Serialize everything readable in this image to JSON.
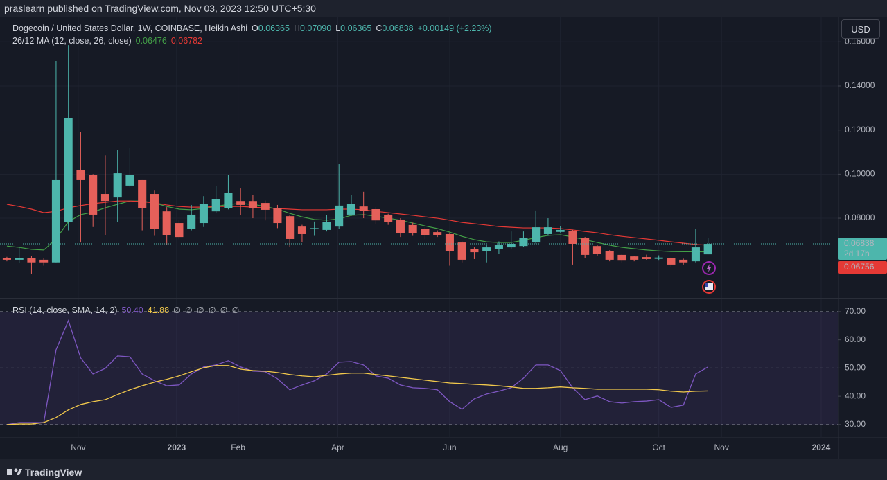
{
  "header": {
    "publisher": "praslearn published on TradingView.com, Nov 03, 2023 12:50 UTC+5:30",
    "currency": "USD",
    "brand": "TradingView"
  },
  "chart_data": [
    {
      "type": "candlestick",
      "title": "Dogecoin / United States Dollar, 1W, COINBASE, Heikin Ashi",
      "ohlc": [
        {
          "key": "O",
          "value": "0.06365"
        },
        {
          "key": "H",
          "value": "0.07090"
        },
        {
          "key": "L",
          "value": "0.06365"
        },
        {
          "key": "C",
          "value": "0.06838"
        }
      ],
      "change": "+0.00149 (+2.23%)",
      "indicator": "26/12 MA (12, close, 26, close)",
      "up_color": "#4db6ac",
      "down_color": "#e5605a",
      "x": [
        0,
        1,
        2,
        3,
        4,
        5,
        6,
        7,
        8,
        9,
        10,
        11,
        12,
        13,
        14,
        15,
        16,
        17,
        18,
        19,
        20,
        21,
        22,
        23,
        24,
        25,
        26,
        27,
        28,
        29,
        30,
        31,
        32,
        33,
        34,
        35,
        36,
        37,
        38,
        39,
        40,
        41,
        42,
        43,
        44,
        45,
        46,
        47,
        48,
        49,
        50,
        51,
        52,
        53,
        54,
        55,
        56,
        57
      ],
      "open": [
        0.062,
        0.0612,
        0.062,
        0.0612,
        0.06,
        0.0782,
        0.102,
        0.0998,
        0.091,
        0.0894,
        0.0948,
        0.0973,
        0.091,
        0.0831,
        0.0778,
        0.0753,
        0.0778,
        0.0831,
        0.0847,
        0.0878,
        0.0878,
        0.0869,
        0.0847,
        0.0809,
        0.0762,
        0.075,
        0.0747,
        0.0762,
        0.0816,
        0.0853,
        0.0841,
        0.0816,
        0.0794,
        0.0769,
        0.0753,
        0.0737,
        0.0728,
        0.069,
        0.0659,
        0.0652,
        0.0659,
        0.0668,
        0.0674,
        0.069,
        0.0728,
        0.0738,
        0.0743,
        0.0712,
        0.0674,
        0.0652,
        0.0634,
        0.0627,
        0.0624,
        0.0616,
        0.0621,
        0.0612,
        0.0605,
        0.06365
      ],
      "high": [
        0.0625,
        0.0668,
        0.0628,
        0.0618,
        0.1513,
        0.1585,
        0.119,
        0.1,
        0.1085,
        0.111,
        0.112,
        0.0973,
        0.0925,
        0.085,
        0.079,
        0.086,
        0.09,
        0.0945,
        0.0995,
        0.0935,
        0.0905,
        0.088,
        0.086,
        0.0815,
        0.077,
        0.0785,
        0.0815,
        0.1045,
        0.0905,
        0.092,
        0.085,
        0.082,
        0.08,
        0.078,
        0.076,
        0.0745,
        0.0735,
        0.0695,
        0.0668,
        0.068,
        0.0695,
        0.074,
        0.074,
        0.0835,
        0.08,
        0.0765,
        0.0748,
        0.0715,
        0.068,
        0.0655,
        0.0637,
        0.063,
        0.0635,
        0.0632,
        0.0623,
        0.0617,
        0.075,
        0.0709
      ],
      "low": [
        0.0605,
        0.0598,
        0.0549,
        0.0585,
        0.06,
        0.0745,
        0.069,
        0.076,
        0.0722,
        0.0784,
        0.094,
        0.0745,
        0.072,
        0.068,
        0.0705,
        0.0745,
        0.076,
        0.0825,
        0.084,
        0.0815,
        0.08,
        0.079,
        0.0755,
        0.067,
        0.069,
        0.072,
        0.074,
        0.075,
        0.081,
        0.08,
        0.0775,
        0.077,
        0.0715,
        0.072,
        0.0705,
        0.0715,
        0.0585,
        0.06,
        0.0615,
        0.06,
        0.064,
        0.066,
        0.067,
        0.0685,
        0.072,
        0.0735,
        0.059,
        0.062,
        0.063,
        0.0605,
        0.06,
        0.0605,
        0.061,
        0.0608,
        0.058,
        0.059,
        0.06,
        0.06365
      ],
      "close": [
        0.0612,
        0.062,
        0.06,
        0.06,
        0.0973,
        0.1255,
        0.0973,
        0.0816,
        0.0878,
        0.1004,
        0.0998,
        0.0847,
        0.0753,
        0.0722,
        0.0715,
        0.0816,
        0.0863,
        0.0885,
        0.0916,
        0.086,
        0.0847,
        0.0838,
        0.0778,
        0.0706,
        0.0728,
        0.0755,
        0.0784,
        0.0857,
        0.0863,
        0.0834,
        0.079,
        0.0784,
        0.0731,
        0.0731,
        0.0722,
        0.0722,
        0.0652,
        0.0612,
        0.0646,
        0.0668,
        0.0678,
        0.0684,
        0.0712,
        0.0759,
        0.0759,
        0.0747,
        0.0684,
        0.0634,
        0.0637,
        0.0612,
        0.0608,
        0.0612,
        0.0615,
        0.0622,
        0.059,
        0.06,
        0.0668,
        0.06838
      ],
      "series": [
        {
          "color": "#43a047",
          "legend_value": "0.06476",
          "values": [
            0.0674,
            0.0668,
            0.0659,
            0.0656,
            0.0706,
            0.0784,
            0.0816,
            0.0828,
            0.0847,
            0.0863,
            0.0878,
            0.0878,
            0.0869,
            0.0853,
            0.0841,
            0.0838,
            0.0844,
            0.0853,
            0.0863,
            0.0866,
            0.0863,
            0.0853,
            0.0841,
            0.0822,
            0.0806,
            0.0794,
            0.0791,
            0.0797,
            0.0813,
            0.0816,
            0.0809,
            0.08,
            0.0791,
            0.0778,
            0.0765,
            0.0753,
            0.0737,
            0.0718,
            0.0703,
            0.0693,
            0.069,
            0.069,
            0.07,
            0.0712,
            0.0722,
            0.0725,
            0.0715,
            0.0703,
            0.069,
            0.0678,
            0.0668,
            0.0662,
            0.0656,
            0.0652,
            0.0649,
            0.0648,
            0.0648,
            0.06476
          ]
        },
        {
          "color": "#e53935",
          "legend_value": "0.06782",
          "values": [
            0.0863,
            0.0853,
            0.0841,
            0.0825,
            0.0831,
            0.0847,
            0.0857,
            0.0866,
            0.0872,
            0.0878,
            0.0878,
            0.0875,
            0.0869,
            0.086,
            0.0853,
            0.085,
            0.085,
            0.0853,
            0.0853,
            0.0853,
            0.085,
            0.0847,
            0.0844,
            0.0841,
            0.0838,
            0.0838,
            0.0838,
            0.0841,
            0.0841,
            0.0838,
            0.0831,
            0.0825,
            0.0819,
            0.0813,
            0.0806,
            0.08,
            0.0791,
            0.0781,
            0.0775,
            0.0769,
            0.0762,
            0.0759,
            0.0756,
            0.0756,
            0.0756,
            0.0753,
            0.0747,
            0.074,
            0.0734,
            0.0725,
            0.0718,
            0.0712,
            0.0706,
            0.07,
            0.0693,
            0.0687,
            0.0681,
            0.06782
          ]
        }
      ],
      "last_price": {
        "value": 0.06838,
        "label": "0.06838"
      },
      "countdown": "2d 17h",
      "ma_badge": "0.06756",
      "xlim": [
        -0.56,
        67.61
      ],
      "xticks": [
        {
          "value": 5.8,
          "label": "Nov"
        },
        {
          "value": 13.8,
          "label": "2023"
        },
        {
          "value": 18.8,
          "label": "Feb"
        },
        {
          "value": 26.9,
          "label": "Apr"
        },
        {
          "value": 36.0,
          "label": "Jun"
        },
        {
          "value": 45.0,
          "label": "Aug"
        },
        {
          "value": 53.0,
          "label": "Oct"
        },
        {
          "value": 58.1,
          "label": "Nov"
        },
        {
          "value": 66.2,
          "label": "2024"
        }
      ],
      "ylim": [
        0.0439,
        0.1714
      ],
      "yticks": [
        {
          "value": 0.16,
          "label": "0.16000"
        },
        {
          "value": 0.14,
          "label": "0.14000"
        },
        {
          "value": 0.12,
          "label": "0.12000"
        },
        {
          "value": 0.1,
          "label": "0.10000"
        },
        {
          "value": 0.08,
          "label": "0.08000"
        }
      ],
      "grid": true
    },
    {
      "type": "line",
      "title": "RSI (14, close, SMA, 14, 2)",
      "status": [
        "∅",
        "∅",
        "∅",
        "∅",
        "∅",
        "∅"
      ],
      "series": [
        {
          "color": "#7e57c2",
          "legend_value": "50.40",
          "values": [
            30,
            30.7,
            30.7,
            30.7,
            56.5,
            66.8,
            53.6,
            47.9,
            49.9,
            54.3,
            54,
            47.9,
            45.5,
            43.7,
            44,
            47.9,
            50.4,
            51.1,
            52.6,
            50.4,
            48.9,
            48.7,
            46.2,
            42.3,
            44,
            45.5,
            47.9,
            52.1,
            52.3,
            51.1,
            47.2,
            46.4,
            44,
            43,
            42.8,
            42.3,
            38.1,
            35.4,
            39.1,
            40.8,
            41.8,
            43,
            46.4,
            51.1,
            51.1,
            49.1,
            43,
            38.8,
            40.1,
            38.1,
            37.6,
            38.1,
            38.3,
            38.8,
            36.1,
            36.9,
            47.9,
            50.4
          ]
        },
        {
          "color": "#f2c94c",
          "legend_value": "41.88",
          "values": [
            30,
            30.2,
            30.2,
            30.7,
            32.5,
            35.2,
            37.1,
            38.1,
            38.8,
            40.6,
            42.3,
            43.7,
            45,
            46,
            47.2,
            48.7,
            50.1,
            50.9,
            50.9,
            49.6,
            49.1,
            48.9,
            48.4,
            47.7,
            47.2,
            46.9,
            47.4,
            47.9,
            48.2,
            48.2,
            47.7,
            47.2,
            46.7,
            46.2,
            45.7,
            45.2,
            44.7,
            44.5,
            44.2,
            44,
            43.7,
            43.3,
            42.8,
            42.8,
            43,
            43.3,
            43,
            42.8,
            42.5,
            42.5,
            42.5,
            42.5,
            42.5,
            42.3,
            41.8,
            41.5,
            41.8,
            41.88
          ]
        }
      ],
      "band": [
        30,
        70
      ],
      "levels": [
        70,
        50,
        30
      ],
      "ylim": [
        25.3,
        74.4
      ],
      "yticks": [
        {
          "value": 70,
          "label": "70.00"
        },
        {
          "value": 60,
          "label": "60.00"
        },
        {
          "value": 50,
          "label": "50.00"
        },
        {
          "value": 40,
          "label": "40.00"
        },
        {
          "value": 30,
          "label": "30.00"
        }
      ]
    }
  ]
}
